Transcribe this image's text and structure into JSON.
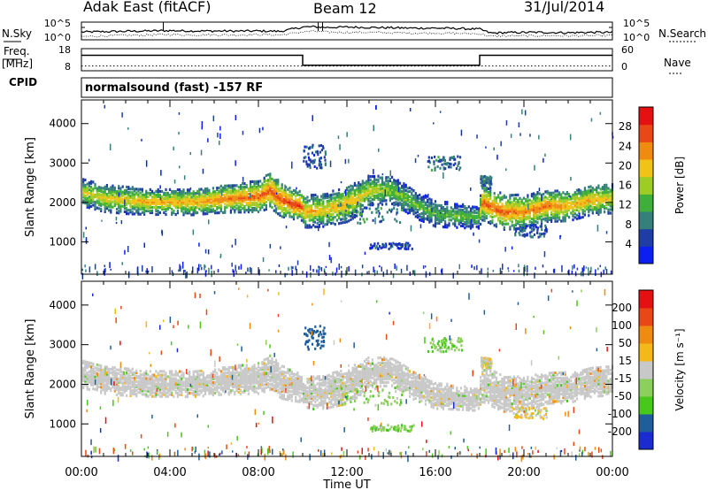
{
  "header": {
    "station": "Adak East (fitACF)",
    "beam": "Beam 12",
    "date": "31/Jul/2014"
  },
  "side_labels": {
    "nsky": "N.Sky",
    "nsearch": "N.Search",
    "freq_line1": "Freq.",
    "freq_line2": "[MHz]",
    "nave": "Nave",
    "cpid": "CPID",
    "cpid_value": "normalsound (fast) -157 RF"
  },
  "chart_data": [
    {
      "type": "line",
      "panel": "noise",
      "left_axis": {
        "label": "N.Sky",
        "ticks": [
          "10^5",
          "10^0"
        ]
      },
      "right_axis": {
        "label": "N.Search",
        "ticks": [
          "10^5",
          "10^0"
        ]
      },
      "x_hours": [
        0,
        0.5,
        1,
        2,
        3,
        4,
        5,
        6,
        7,
        8,
        9,
        10,
        10.5,
        11,
        12,
        13,
        14,
        15,
        16,
        17,
        18,
        18.5,
        19,
        20,
        21,
        22,
        23,
        24
      ],
      "series": [
        {
          "name": "N.Sky",
          "values": [
            0.44,
            0.45,
            0.46,
            0.48,
            0.5,
            0.52,
            0.5,
            0.5,
            0.49,
            0.5,
            0.48,
            0.72,
            0.74,
            0.7,
            0.72,
            0.7,
            0.68,
            0.66,
            0.66,
            0.64,
            0.6,
            0.38,
            0.4,
            0.42,
            0.42,
            0.4,
            0.42,
            0.42
          ]
        },
        {
          "name": "N.Search",
          "values": [
            0.18,
            0.2,
            0.22,
            0.25,
            0.27,
            0.3,
            0.28,
            0.28,
            0.27,
            0.3,
            0.27,
            0.45,
            0.48,
            0.44,
            0.42,
            0.42,
            0.4,
            0.38,
            0.38,
            0.36,
            0.34,
            0.2,
            0.22,
            0.22,
            0.24,
            0.22,
            0.24,
            0.24
          ]
        }
      ]
    },
    {
      "type": "line",
      "panel": "frequency",
      "left_axis": {
        "label": "Freq. [MHz]",
        "ticks": [
          18,
          8
        ],
        "range": [
          8,
          18
        ]
      },
      "right_axis": {
        "label": "Nave",
        "ticks": [
          60,
          0
        ],
        "range": [
          0,
          60
        ]
      },
      "series": [
        {
          "name": "Freq.",
          "x_hours": [
            0,
            10,
            10,
            18,
            18,
            24
          ],
          "values": [
            15,
            15,
            10.5,
            10.5,
            15,
            15
          ]
        },
        {
          "name": "Nave",
          "x_hours": [
            0,
            24
          ],
          "values": [
            13,
            13
          ]
        }
      ]
    },
    {
      "type": "heatmap",
      "panel": "power",
      "ylabel": "Slant Range [km]",
      "y_ticks": [
        1000,
        2000,
        3000,
        4000
      ],
      "ylim": [
        180,
        4600
      ],
      "colorbar": {
        "label": "Power [dB]",
        "ticks": [
          4,
          8,
          12,
          16,
          20,
          24,
          28
        ],
        "range": [
          0,
          32
        ],
        "colors": [
          "#0b1ff0",
          "#1e3ea6",
          "#35807a",
          "#3fae3a",
          "#9dcc24",
          "#f0c318",
          "#f08b12",
          "#e84816",
          "#e31111"
        ]
      },
      "echo_band": {
        "x_hours": [
          0,
          1,
          2,
          3,
          4,
          5,
          6,
          7,
          8,
          8.5,
          9,
          9.5,
          9.9,
          10.1,
          11,
          12,
          12.5,
          13,
          14,
          14.5,
          15,
          16,
          17,
          17.9,
          18.1,
          19,
          20,
          21,
          22,
          23,
          24
        ],
        "center_km": [
          2300,
          2150,
          2100,
          2050,
          2050,
          2050,
          2100,
          2150,
          2200,
          2350,
          2100,
          2000,
          1950,
          1800,
          1850,
          2000,
          2150,
          2350,
          2350,
          2200,
          2000,
          1750,
          1700,
          1650,
          2050,
          1800,
          1800,
          1950,
          1950,
          2100,
          2150
        ],
        "width_km": [
          350,
          350,
          350,
          320,
          320,
          330,
          330,
          360,
          400,
          450,
          420,
          380,
          360,
          400,
          420,
          450,
          420,
          380,
          350,
          350,
          350,
          330,
          300,
          280,
          450,
          450,
          420,
          400,
          380,
          380,
          380
        ],
        "peak_db": [
          18,
          20,
          20,
          22,
          22,
          22,
          24,
          25,
          26,
          27,
          27,
          28,
          28,
          22,
          20,
          22,
          20,
          18,
          16,
          15,
          14,
          13,
          14,
          14,
          26,
          26,
          24,
          24,
          22,
          22,
          20
        ]
      }
    },
    {
      "type": "heatmap",
      "panel": "velocity",
      "xlabel": "Time UT",
      "ylabel": "Slant Range [km]",
      "x_ticks": [
        "00:00",
        "04:00",
        "08:00",
        "12:00",
        "16:00",
        "20:00",
        "00:00"
      ],
      "xlim": [
        0,
        24
      ],
      "y_ticks": [
        1000,
        2000,
        3000,
        4000
      ],
      "ylim": [
        180,
        4600
      ],
      "colorbar": {
        "label": "Velocity [m s⁻¹]",
        "ticks": [
          200,
          100,
          50,
          15,
          -15,
          -50,
          -100,
          -200
        ],
        "colors": [
          "#1a2bd0",
          "#1f5e9a",
          "#48c81a",
          "#8bd05c",
          "#c8c8c8",
          "#f5b81a",
          "#f08b12",
          "#e84816",
          "#e31111"
        ]
      }
    }
  ]
}
